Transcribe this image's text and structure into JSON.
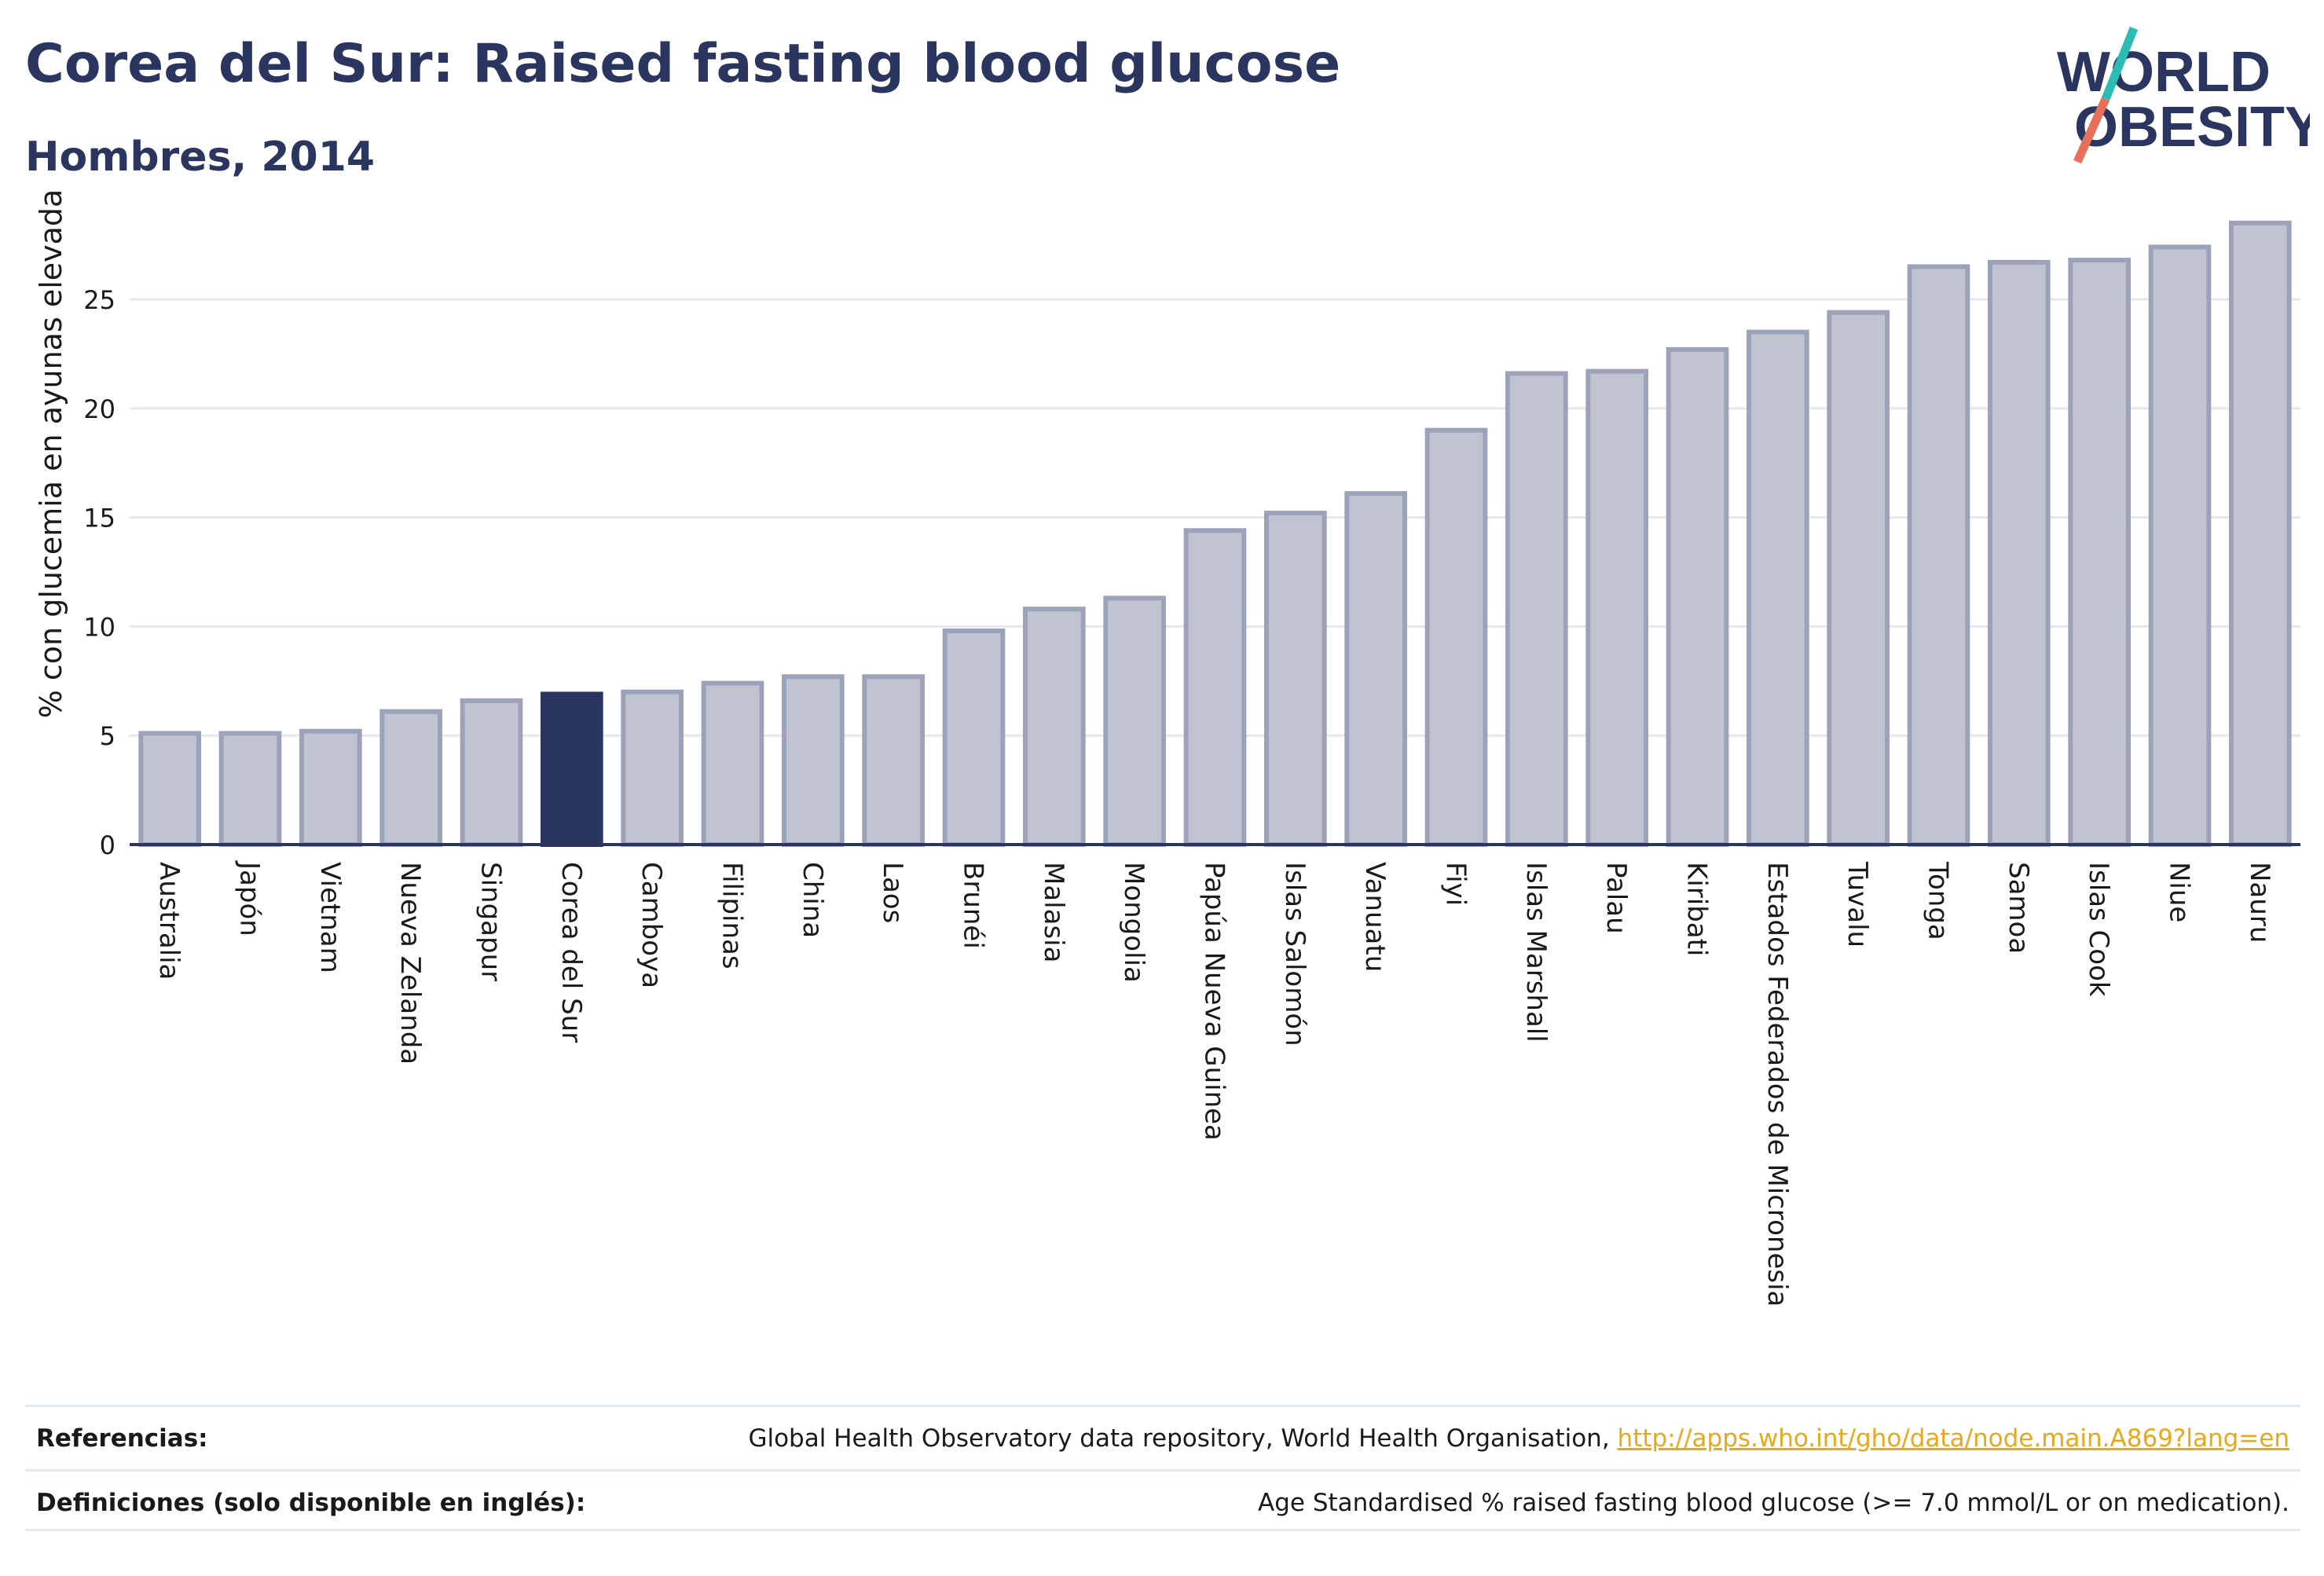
{
  "header": {
    "title": "Corea del Sur: Raised fasting blood glucose",
    "subtitle": "Hombres, 2014"
  },
  "logo": {
    "line1": "WORLD",
    "line2": "OBESITY",
    "colors": {
      "text": "#2a3560",
      "slash_teal": "#2bbcb4",
      "slash_coral": "#e8705a"
    }
  },
  "chart_data": {
    "type": "bar",
    "ylabel": "% con glucemia en ayunas elevada",
    "xlabel": "",
    "ylim": [
      0,
      29
    ],
    "yticks": [
      0,
      5,
      10,
      15,
      20,
      25
    ],
    "grid": true,
    "highlight": "Corea del Sur",
    "colors": {
      "bar": "#c0c3d0",
      "bar_edge": "#9da2bb",
      "highlight": "#2a3560",
      "grid": "#e6e7ee",
      "axis": "#2a3560"
    },
    "categories": [
      "Australia",
      "Japón",
      "Vietnam",
      "Nueva Zelanda",
      "Singapur",
      "Corea del Sur",
      "Camboya",
      "Filipinas",
      "China",
      "Laos",
      "Brunéi",
      "Malasia",
      "Mongolia",
      "Papúa Nueva Guinea",
      "Islas Salomón",
      "Vanuatu",
      "Fiyi",
      "Islas Marshall",
      "Palau",
      "Kiribati",
      "Estados Federados de Micronesia",
      "Tuvalu",
      "Tonga",
      "Samoa",
      "Islas Cook",
      "Niue",
      "Nauru"
    ],
    "values": [
      5.1,
      5.1,
      5.2,
      6.1,
      6.6,
      6.9,
      7.0,
      7.4,
      7.7,
      7.7,
      9.8,
      10.8,
      11.3,
      14.4,
      15.2,
      16.1,
      19.0,
      21.6,
      21.7,
      22.7,
      23.5,
      24.4,
      26.5,
      26.7,
      26.8,
      27.4,
      28.5
    ]
  },
  "footer": {
    "references_label": "Referencias:",
    "references_text": "Global Health Observatory data repository, World Health Organisation, ",
    "references_link": "http://apps.who.int/gho/data/node.main.A869?lang=en",
    "definitions_label": "Definiciones (solo disponible en inglés):",
    "definitions_text": "Age Standardised % raised fasting blood glucose (>= 7.0 mmol/L or on medication)."
  }
}
